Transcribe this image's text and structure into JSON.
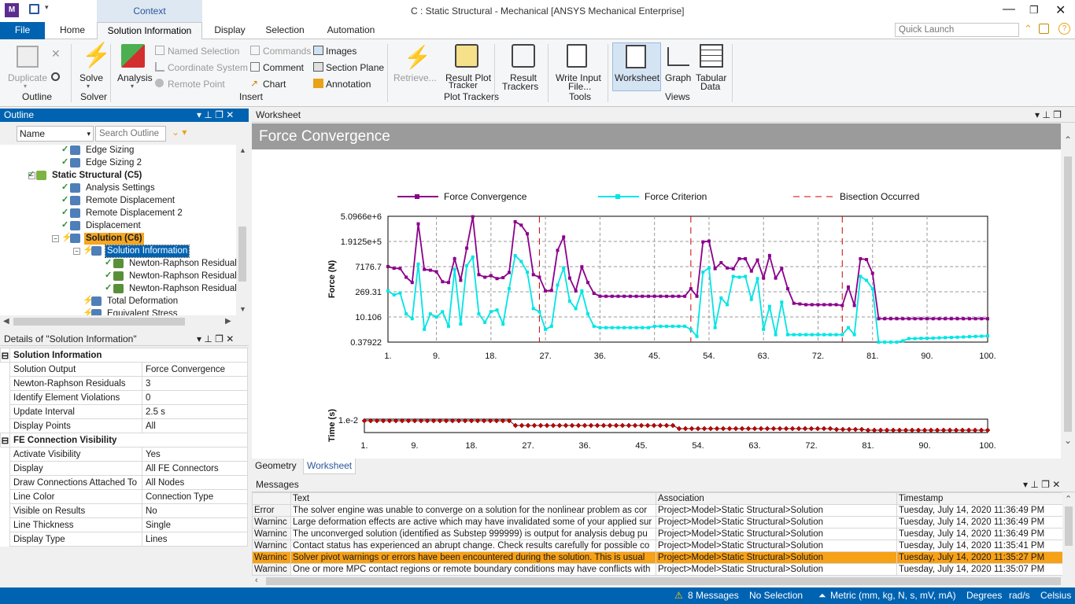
{
  "window": {
    "title": "C : Static Structural - Mechanical [ANSYS Mechanical Enterprise]",
    "app_icon": "M",
    "context_header": "Context"
  },
  "tabs": [
    "File",
    "Home",
    "Solution Information",
    "Display",
    "Selection",
    "Automation"
  ],
  "active_tab": "Solution Information",
  "quick_launch": {
    "placeholder": "Quick Launch"
  },
  "ribbon": {
    "outline_group": {
      "duplicate": "Duplicate",
      "label": "Outline"
    },
    "solver_group": {
      "solve": "Solve",
      "label": "Solver"
    },
    "insert_group": {
      "analysis": "Analysis",
      "named_selection": "Named Selection",
      "coordinate_system": "Coordinate System",
      "remote_point": "Remote Point",
      "commands": "Commands",
      "comment": "Comment",
      "chart": "Chart",
      "images": "Images",
      "section_plane": "Section Plane",
      "annotation": "Annotation",
      "label": "Insert"
    },
    "retrieve": "Retrieve...",
    "plot_trackers_group": {
      "line1": "Result Plot",
      "line2": "Tracker",
      "label": "Plot Trackers"
    },
    "result_trackers": {
      "line1": "Result",
      "line2": "Trackers"
    },
    "tools_group": {
      "line1": "Write Input",
      "line2": "File...",
      "label": "Tools"
    },
    "views_group": {
      "worksheet": "Worksheet",
      "graph": "Graph",
      "tabular1": "Tabular",
      "tabular2": "Data",
      "label": "Views"
    }
  },
  "outline": {
    "title": "Outline",
    "filter_name": "Name",
    "search_placeholder": "Search Outline",
    "items": [
      {
        "label": "Edge Sizing",
        "depth": 3
      },
      {
        "label": "Edge Sizing 2",
        "depth": 3
      },
      {
        "label": "Static Structural (C5)",
        "depth": 2
      },
      {
        "label": "Analysis Settings",
        "depth": 3
      },
      {
        "label": "Remote Displacement",
        "depth": 3
      },
      {
        "label": "Remote Displacement 2",
        "depth": 3
      },
      {
        "label": "Displacement",
        "depth": 3
      },
      {
        "label": "Solution (C6)",
        "depth": 3
      },
      {
        "label": "Solution Information",
        "depth": 4
      },
      {
        "label": "Newton-Raphson Residual F",
        "depth": 5
      },
      {
        "label": "Newton-Raphson Residual F",
        "depth": 5
      },
      {
        "label": "Newton-Raphson Residual F",
        "depth": 5
      },
      {
        "label": "Total Deformation",
        "depth": 4
      },
      {
        "label": "Equivalent Stress",
        "depth": 4
      }
    ]
  },
  "details": {
    "title": "Details of \"Solution Information\"",
    "rows": [
      {
        "section": "Solution Information"
      },
      {
        "k": "Solution Output",
        "v": "Force Convergence"
      },
      {
        "k": "Newton-Raphson Residuals",
        "v": "3"
      },
      {
        "k": "Identify Element Violations",
        "v": "0"
      },
      {
        "k": "Update Interval",
        "v": "2.5 s"
      },
      {
        "k": "Display Points",
        "v": "All"
      },
      {
        "section": "FE Connection Visibility"
      },
      {
        "k": "Activate Visibility",
        "v": "Yes"
      },
      {
        "k": "Display",
        "v": "All FE Connectors"
      },
      {
        "k": "Draw Connections Attached To",
        "v": "All Nodes"
      },
      {
        "k": "Line Color",
        "v": "Connection Type"
      },
      {
        "k": "Visible on Results",
        "v": "No"
      },
      {
        "k": "Line Thickness",
        "v": "Single"
      },
      {
        "k": "Display Type",
        "v": "Lines"
      }
    ]
  },
  "worksheet": {
    "panel_title": "Worksheet",
    "heading": "Force Convergence",
    "bottom_tabs": [
      "Geometry",
      "Worksheet"
    ]
  },
  "chart_data": [
    {
      "type": "line",
      "title": "",
      "ylabel": "Force (N)",
      "yscale": "log",
      "yticks": [
        "5.0966e+6",
        "1.9125e+5",
        "7176.7",
        "269.31",
        "10.106",
        "0.37922"
      ],
      "xticks": [
        "1.",
        "9.",
        "18.",
        "27.",
        "36.",
        "45.",
        "54.",
        "63.",
        "72.",
        "81.",
        "90.",
        "100."
      ],
      "xlim": [
        1,
        100
      ],
      "grid": true,
      "legend": "top",
      "bisections": [
        26,
        51,
        76
      ],
      "series": [
        {
          "name": "Force Convergence",
          "color": "#8b008b",
          "values": [
            7200,
            5800,
            5600,
            1800,
            900,
            1900000,
            5000,
            4500,
            3700,
            1000,
            900,
            20000,
            1200,
            80000,
            4800000,
            2500,
            1800,
            2200,
            1500,
            1700,
            3300,
            2500000,
            1600000,
            520000,
            2500,
            1800,
            300,
            320,
            60000,
            340000,
            1600,
            300,
            7000,
            900,
            220,
            150,
            150,
            150,
            150,
            150,
            150,
            150,
            150,
            150,
            150,
            150,
            150,
            150,
            150,
            150,
            400,
            150,
            180000,
            200000,
            5500,
            12000,
            6000,
            5400,
            20000,
            20000,
            4000,
            17000,
            1600,
            30000,
            1600,
            5700,
            400,
            60,
            55,
            50,
            50,
            50,
            50,
            50,
            50,
            45,
            500,
            45,
            20000,
            18000,
            3000,
            8,
            8,
            8,
            8,
            8,
            8,
            8,
            8,
            8,
            8,
            8,
            8,
            8,
            8,
            8,
            8,
            8,
            8,
            8
          ]
        },
        {
          "name": "Force Criterion",
          "color": "#00e5e5",
          "values": [
            300,
            180,
            230,
            15,
            8,
            10000,
            2,
            15,
            10,
            20,
            3,
            5000,
            4,
            8000,
            25000,
            15,
            5,
            20,
            25,
            4,
            400,
            30000,
            14000,
            3500,
            30,
            20,
            2,
            3,
            650,
            6000,
            80,
            30,
            300,
            15,
            3,
            2.5,
            2.5,
            2.5,
            2.5,
            2.5,
            2.5,
            2.5,
            2.5,
            2.5,
            3,
            3,
            3,
            3,
            3,
            3,
            2,
            0.8,
            3500,
            6000,
            2.5,
            120,
            50,
            2000,
            1800,
            2000,
            100,
            1500,
            2,
            40,
            1,
            70,
            1,
            1,
            1,
            1,
            1,
            1,
            1,
            1,
            1,
            1,
            2.5,
            1,
            2000,
            1200,
            400,
            0.3,
            0.3,
            0.38,
            0.35,
            0.45,
            0.6,
            0.6,
            0.62,
            0.63,
            0.64,
            0.66,
            0.68,
            0.7,
            0.72,
            0.74,
            0.77,
            0.8,
            0.82,
            0.85
          ]
        },
        {
          "name": "Bisection Occurred",
          "color": "#d00000",
          "values": []
        }
      ]
    },
    {
      "type": "line",
      "title": "",
      "ylabel": "Time (s)",
      "yticks": [
        "1.e-2"
      ],
      "xticks": [
        "1.",
        "9.",
        "18.",
        "27.",
        "36.",
        "45.",
        "54.",
        "63.",
        "72.",
        "81.",
        "90.",
        "100."
      ],
      "xlim": [
        1,
        100
      ],
      "series": [
        {
          "name": "",
          "color": "#8b0000",
          "values": [
            0.01,
            0.0075,
            0.00625,
            0.005,
            0.004
          ]
        }
      ]
    }
  ],
  "messages": {
    "title": "Messages",
    "columns": [
      "",
      "Text",
      "Association",
      "Timestamp"
    ],
    "rows": [
      {
        "type": "Error",
        "text": "The solver engine was unable to converge on a solution for the nonlinear problem as cor",
        "assoc": "Project>Model>Static Structural>Solution",
        "time": "Tuesday, July 14, 2020 11:36:49 PM"
      },
      {
        "type": "Warninc",
        "text": "Large deformation effects are active which may have invalidated some of your applied sur",
        "assoc": "Project>Model>Static Structural>Solution",
        "time": "Tuesday, July 14, 2020 11:36:49 PM"
      },
      {
        "type": "Warninc",
        "text": "The unconverged solution (identified as Substep 999999) is output for analysis debug pu",
        "assoc": "Project>Model>Static Structural>Solution",
        "time": "Tuesday, July 14, 2020 11:36:49 PM"
      },
      {
        "type": "Warninc",
        "text": "Contact status has experienced an abrupt change.  Check results carefully for possible co",
        "assoc": "Project>Model>Static Structural>Solution",
        "time": "Tuesday, July 14, 2020 11:35:41 PM"
      },
      {
        "type": "Warninc",
        "text": "Solver pivot warnings or errors have been encountered during the solution.  This is usual",
        "assoc": "Project>Model>Static Structural>Solution",
        "time": "Tuesday, July 14, 2020 11:35:27 PM",
        "selected": true
      },
      {
        "type": "Warninc",
        "text": "One or more MPC contact regions or remote boundary conditions may have conflicts with",
        "assoc": "Project>Model>Static Structural>Solution",
        "time": "Tuesday, July 14, 2020 11:35:07 PM"
      }
    ]
  },
  "status": {
    "messages": "8 Messages",
    "selection": "No Selection",
    "units": "Metric (mm, kg, N, s, mV, mA)",
    "angle": "Degrees",
    "rot": "rad/s",
    "temp": "Celsius"
  }
}
